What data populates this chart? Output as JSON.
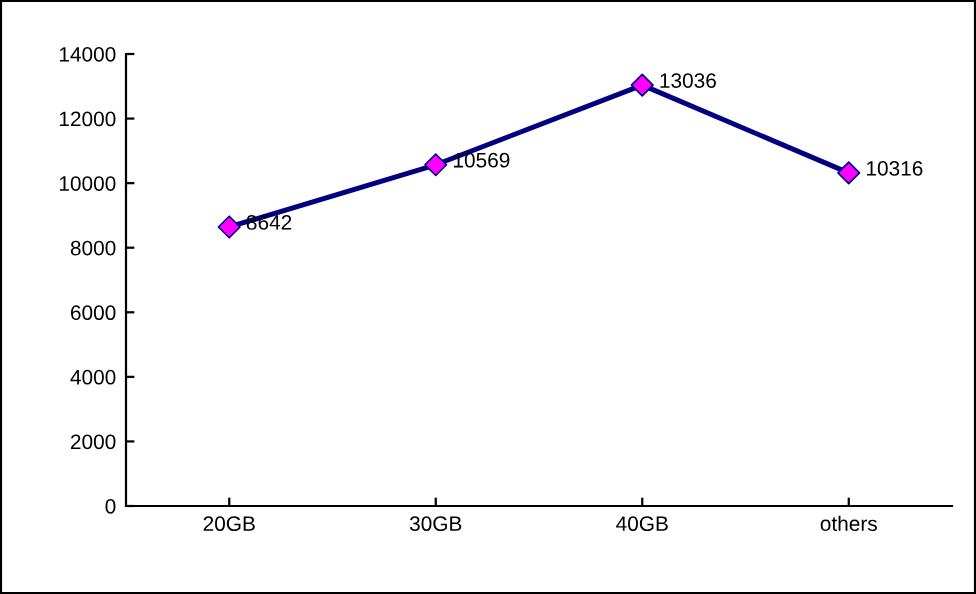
{
  "chart_data": {
    "type": "line",
    "categories": [
      "20GB",
      "30GB",
      "40GB",
      "others"
    ],
    "series": [
      {
        "color": "#000080",
        "colors": [
          "#ff00ff",
          "#ff00ff",
          "#ff00ff",
          "#ff00ff"
        ],
        "values": [
          8642,
          10569,
          13036,
          10316
        ]
      }
    ],
    "ylim": [
      0,
      14000
    ],
    "yticks": [
      0,
      2000,
      4000,
      6000,
      8000,
      10000,
      12000,
      14000
    ],
    "grid": false,
    "legend": false,
    "marker": "diamond",
    "line_style": "solid",
    "data_labels": true
  }
}
